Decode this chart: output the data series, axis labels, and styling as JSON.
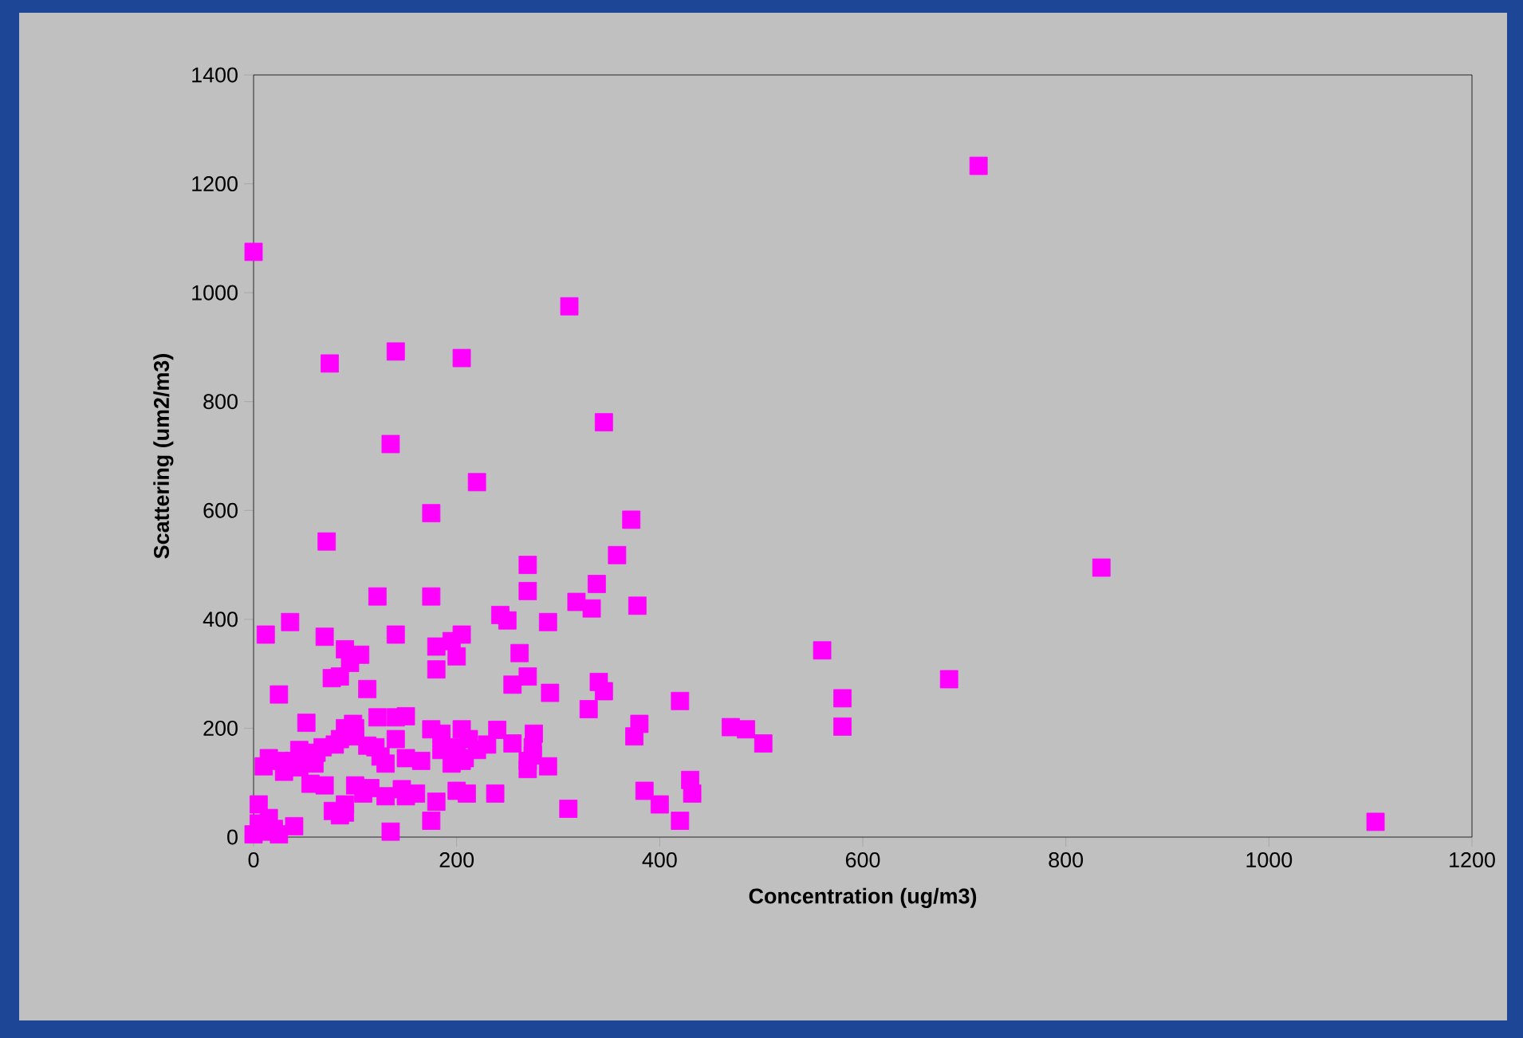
{
  "chart_data": {
    "type": "scatter",
    "xlabel": "Concentration (ug/m3)",
    "ylabel": "Scattering (um2/m3)",
    "xlim": [
      0,
      1200
    ],
    "xticks": [
      0,
      200,
      400,
      600,
      800,
      1000,
      1200
    ],
    "ylim": [
      0,
      1400
    ],
    "yticks": [
      0,
      200,
      400,
      600,
      800,
      1000,
      1200,
      1400
    ],
    "marker": "square",
    "series": [
      {
        "color": "#ff00ff",
        "x": [
          714,
          0,
          311,
          75,
          205,
          140,
          135,
          345,
          220,
          175,
          372,
          72,
          358,
          835,
          270,
          270,
          338,
          122,
          175,
          333,
          378,
          318,
          36,
          290,
          243,
          250,
          12,
          140,
          70,
          205,
          195,
          180,
          90,
          200,
          105,
          262,
          95,
          180,
          85,
          77,
          560,
          685,
          580,
          420,
          340,
          330,
          345,
          270,
          255,
          292,
          25,
          112,
          140,
          150,
          122,
          380,
          375,
          470,
          485,
          502,
          580,
          276,
          275,
          240,
          205,
          212,
          255,
          200,
          208,
          220,
          175,
          185,
          90,
          98,
          85,
          52,
          100,
          62,
          68,
          80,
          45,
          40,
          15,
          25,
          30,
          45,
          60,
          125,
          130,
          112,
          150,
          165,
          146,
          150,
          200,
          210,
          180,
          238,
          270,
          290,
          275,
          270,
          56,
          70,
          78,
          90,
          85,
          100,
          115,
          108,
          130,
          160,
          100,
          10,
          5,
          0,
          5,
          15,
          20,
          25,
          10,
          40,
          135,
          175,
          310,
          385,
          400,
          420,
          430,
          432,
          1105,
          90,
          120,
          140,
          185,
          205,
          195,
          230
        ],
        "values": [
          1233,
          1075,
          975,
          870,
          880,
          892,
          722,
          762,
          652,
          595,
          583,
          543,
          518,
          495,
          500,
          452,
          465,
          442,
          442,
          420,
          425,
          432,
          395,
          395,
          408,
          398,
          372,
          372,
          368,
          372,
          360,
          350,
          345,
          332,
          335,
          338,
          320,
          308,
          295,
          292,
          343,
          290,
          255,
          250,
          285,
          235,
          268,
          295,
          280,
          265,
          262,
          272,
          220,
          222,
          220,
          208,
          185,
          202,
          198,
          172,
          203,
          190,
          165,
          197,
          198,
          180,
          172,
          165,
          145,
          160,
          198,
          160,
          200,
          208,
          180,
          210,
          185,
          155,
          165,
          170,
          160,
          140,
          145,
          140,
          120,
          128,
          135,
          148,
          135,
          168,
          145,
          140,
          88,
          75,
          85,
          80,
          65,
          80,
          125,
          130,
          150,
          140,
          98,
          95,
          48,
          60,
          40,
          95,
          90,
          80,
          75,
          80,
          200,
          130,
          60,
          5,
          25,
          35,
          15,
          5,
          10,
          20,
          10,
          30,
          52,
          85,
          60,
          30,
          105,
          80,
          28,
          45,
          165,
          180,
          190,
          140,
          135,
          170
        ]
      }
    ]
  }
}
